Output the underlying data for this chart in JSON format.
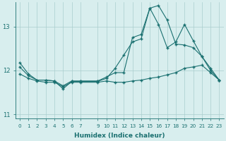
{
  "xlabel": "Humidex (Indice chaleur)",
  "bg_color": "#d8eeee",
  "line_color": "#1a7070",
  "grid_color": "#aacece",
  "ylim": [
    10.9,
    13.55
  ],
  "yticks": [
    11,
    12,
    13
  ],
  "xlim": [
    -0.5,
    23.5
  ],
  "xticks": [
    0,
    1,
    2,
    3,
    4,
    5,
    6,
    7,
    9,
    10,
    11,
    12,
    13,
    14,
    15,
    16,
    17,
    18,
    19,
    20,
    21,
    22,
    23
  ],
  "line1_x": [
    0,
    1,
    2,
    3,
    4,
    5,
    6,
    7,
    9,
    10,
    11,
    12,
    13,
    14,
    15,
    16,
    17,
    18,
    19,
    20,
    21,
    22,
    23
  ],
  "line1_y": [
    12.18,
    11.92,
    11.78,
    11.78,
    11.76,
    11.65,
    11.76,
    11.76,
    11.76,
    11.85,
    11.95,
    11.95,
    12.75,
    12.82,
    13.42,
    13.48,
    13.15,
    12.6,
    12.58,
    12.52,
    12.32,
    12.0,
    11.78
  ],
  "line2_x": [
    0,
    1,
    2,
    3,
    4,
    5,
    6,
    7,
    9,
    10,
    11,
    12,
    13,
    14,
    15,
    16,
    17,
    18,
    19,
    20,
    21,
    22,
    23
  ],
  "line2_y": [
    11.92,
    11.82,
    11.76,
    11.73,
    11.73,
    11.63,
    11.73,
    11.73,
    11.73,
    11.76,
    11.73,
    11.73,
    11.76,
    11.78,
    11.82,
    11.85,
    11.9,
    11.95,
    12.05,
    12.08,
    12.12,
    11.95,
    11.78
  ],
  "line3_x": [
    0,
    1,
    2,
    3,
    4,
    5,
    6,
    7,
    9,
    10,
    11,
    12,
    13,
    14,
    15,
    16,
    17,
    18,
    19,
    20,
    21,
    22,
    23
  ],
  "line3_y": [
    12.08,
    11.88,
    11.78,
    11.78,
    11.76,
    11.58,
    11.75,
    11.75,
    11.75,
    11.82,
    12.05,
    12.35,
    12.65,
    12.72,
    13.42,
    13.05,
    12.52,
    12.65,
    13.05,
    12.68,
    12.32,
    12.05,
    11.78
  ]
}
